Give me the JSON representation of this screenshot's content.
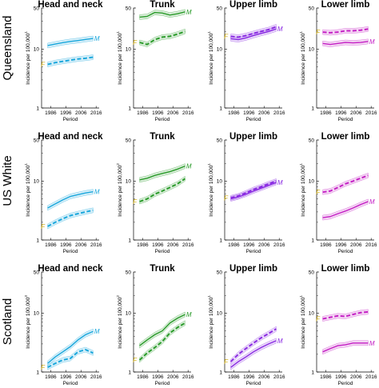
{
  "colors": {
    "head_and_neck": "#1aa7dc",
    "trunk": "#2a9b2a",
    "upper_limb": "#8a2be2",
    "lower_limb": "#c41fc4",
    "label_F": "#c8a400"
  },
  "chart_data": [
    {
      "type": "line",
      "row_label": "Queensland",
      "title": "Head and neck",
      "xlabel": "Period",
      "ylabel": "Incidence per 100,000",
      "ylabel_superscript": "1",
      "yscale": "log",
      "ylim": [
        1,
        50
      ],
      "yticks": [
        "1",
        "10",
        "50"
      ],
      "xticks": [
        "1986",
        "1996",
        "2006",
        "2016"
      ],
      "x": [
        1984,
        1989,
        1994,
        1999,
        2004,
        2009,
        2014
      ],
      "series": [
        {
          "name": "M",
          "dashed": false,
          "values": [
            11.5,
            12.2,
            12.9,
            13.5,
            14.0,
            14.6,
            15.2
          ]
        },
        {
          "name": "F",
          "dashed": true,
          "values": [
            5.5,
            5.9,
            6.2,
            6.5,
            6.8,
            7.0,
            7.3
          ]
        }
      ]
    },
    {
      "type": "line",
      "row_label": "Queensland",
      "title": "Trunk",
      "xlabel": "Period",
      "ylabel": "Incidence per 100,000",
      "ylabel_superscript": "1",
      "yscale": "log",
      "ylim": [
        1,
        50
      ],
      "yticks": [
        "1",
        "10",
        "50"
      ],
      "xticks": [
        "1986",
        "1996",
        "2006",
        "2016"
      ],
      "x": [
        1984,
        1989,
        1994,
        1999,
        2004,
        2009,
        2014
      ],
      "series": [
        {
          "name": "M",
          "dashed": false,
          "values": [
            35,
            36,
            42,
            41,
            38,
            40,
            43
          ]
        },
        {
          "name": "F",
          "dashed": true,
          "values": [
            13.0,
            12.0,
            14.5,
            16.0,
            16.5,
            18.0,
            20.0
          ]
        }
      ]
    },
    {
      "type": "line",
      "row_label": "Queensland",
      "title": "Upper limb",
      "xlabel": "Period",
      "ylabel": "Incidence per 100,000",
      "ylabel_superscript": "1",
      "yscale": "log",
      "ylim": [
        1,
        50
      ],
      "yticks": [
        "1",
        "10",
        "50"
      ],
      "xticks": [
        "1986",
        "1996",
        "2006",
        "2016"
      ],
      "x": [
        1984,
        1989,
        1994,
        1999,
        2004,
        2009,
        2014
      ],
      "series": [
        {
          "name": "M",
          "dashed": false,
          "values": [
            15.0,
            14.5,
            15.5,
            17.0,
            18.5,
            20.0,
            22.0
          ]
        },
        {
          "name": "F",
          "dashed": true,
          "values": [
            16.5,
            16.0,
            17.0,
            18.5,
            20.0,
            21.5,
            24.0
          ]
        }
      ]
    },
    {
      "type": "line",
      "row_label": "Queensland",
      "title": "Lower limb",
      "xlabel": "Period",
      "ylabel": "Incidence per 100,000",
      "ylabel_superscript": "1",
      "yscale": "log",
      "ylim": [
        1,
        50
      ],
      "yticks": [
        "1",
        "10",
        "50"
      ],
      "xticks": [
        "1986",
        "1996",
        "2006",
        "2016"
      ],
      "x": [
        1984,
        1989,
        1994,
        1999,
        2004,
        2009,
        2014
      ],
      "series": [
        {
          "name": "M",
          "dashed": false,
          "values": [
            12.5,
            12.0,
            12.5,
            13.0,
            12.8,
            13.0,
            13.5
          ]
        },
        {
          "name": "F",
          "dashed": true,
          "values": [
            19.5,
            19.0,
            19.5,
            20.5,
            20.5,
            21.0,
            22.0
          ]
        }
      ]
    },
    {
      "type": "line",
      "row_label": "US White",
      "title": "Head and neck",
      "xlabel": "Period",
      "ylabel": "Incidence per 100,000",
      "ylabel_superscript": "1",
      "yscale": "log",
      "ylim": [
        1,
        50
      ],
      "yticks": [
        "1",
        "10",
        "50"
      ],
      "xticks": [
        "1986",
        "1996",
        "2006",
        "2016"
      ],
      "x": [
        1984,
        1989,
        1994,
        1999,
        2004,
        2009,
        2014
      ],
      "series": [
        {
          "name": "M",
          "dashed": false,
          "values": [
            3.5,
            4.1,
            4.8,
            5.5,
            5.9,
            6.3,
            6.6
          ]
        },
        {
          "name": "F",
          "dashed": true,
          "values": [
            1.7,
            2.0,
            2.3,
            2.6,
            2.8,
            3.0,
            3.2
          ]
        }
      ]
    },
    {
      "type": "line",
      "row_label": "US White",
      "title": "Trunk",
      "xlabel": "Period",
      "ylabel": "Incidence per 100,000",
      "ylabel_superscript": "2",
      "yscale": "log",
      "ylim": [
        1,
        50
      ],
      "yticks": [
        "1",
        "10",
        "50"
      ],
      "xticks": [
        "1986",
        "1996",
        "2006",
        "2016"
      ],
      "x": [
        1984,
        1989,
        1994,
        1999,
        2004,
        2009,
        2014
      ],
      "series": [
        {
          "name": "M",
          "dashed": false,
          "values": [
            10.5,
            11.2,
            12.5,
            13.5,
            14.5,
            16.0,
            18.0
          ]
        },
        {
          "name": "F",
          "dashed": true,
          "values": [
            4.5,
            5.0,
            6.0,
            6.8,
            7.8,
            9.0,
            11.0
          ]
        }
      ]
    },
    {
      "type": "line",
      "row_label": "US White",
      "title": "Upper limb",
      "xlabel": "Period",
      "ylabel": "Incidence per 100,000",
      "ylabel_superscript": "1",
      "yscale": "log",
      "ylim": [
        1,
        50
      ],
      "yticks": [
        "1",
        "10",
        "50"
      ],
      "xticks": [
        "1986",
        "1996",
        "2006",
        "2016"
      ],
      "x": [
        1984,
        1989,
        1994,
        1999,
        2004,
        2009,
        2014
      ],
      "series": [
        {
          "name": "M",
          "dashed": false,
          "values": [
            5.0,
            5.4,
            6.0,
            6.8,
            7.6,
            8.5,
            9.5
          ]
        },
        {
          "name": "F",
          "dashed": true,
          "values": [
            5.2,
            5.6,
            6.3,
            7.2,
            8.0,
            9.0,
            10.0
          ]
        }
      ]
    },
    {
      "type": "line",
      "row_label": "US White",
      "title": "Lower limb",
      "xlabel": "Period",
      "ylabel": "Incidence per 100,000",
      "ylabel_superscript": "1",
      "yscale": "log",
      "ylim": [
        1,
        50
      ],
      "yticks": [
        "1",
        "10",
        "50"
      ],
      "xticks": [
        "1986",
        "1996",
        "2006",
        "2016"
      ],
      "x": [
        1984,
        1989,
        1994,
        1999,
        2004,
        2009,
        2014
      ],
      "series": [
        {
          "name": "M",
          "dashed": false,
          "values": [
            2.4,
            2.5,
            2.8,
            3.1,
            3.5,
            4.0,
            4.5
          ]
        },
        {
          "name": "F",
          "dashed": true,
          "values": [
            6.5,
            6.8,
            7.8,
            9.0,
            10.0,
            11.2,
            12.5
          ]
        }
      ]
    },
    {
      "type": "line",
      "row_label": "Scotland",
      "title": "Head and neck",
      "xlabel": "Period",
      "ylabel": "Incidence per 100,000",
      "ylabel_superscript": "3",
      "yscale": "log",
      "ylim": [
        1,
        50
      ],
      "yticks": [
        "1",
        "10",
        "50"
      ],
      "xticks": [
        "1986",
        "1996",
        "2006",
        "2016"
      ],
      "x": [
        1984,
        1989,
        1994,
        1999,
        2004,
        2009,
        2014
      ],
      "series": [
        {
          "name": "M",
          "dashed": false,
          "values": [
            1.4,
            1.8,
            2.2,
            2.7,
            3.5,
            4.3,
            4.9
          ]
        },
        {
          "name": "F",
          "dashed": true,
          "values": [
            1.2,
            1.4,
            1.6,
            1.7,
            2.2,
            2.4,
            2.1
          ]
        }
      ]
    },
    {
      "type": "line",
      "row_label": "Scotland",
      "title": "Trunk",
      "xlabel": "Period",
      "ylabel": "Incidence per 100,000",
      "ylabel_superscript": "2",
      "yscale": "log",
      "ylim": [
        1,
        50
      ],
      "yticks": [
        "1",
        "10",
        "50"
      ],
      "xticks": [
        "1986",
        "1996",
        "2006",
        "2016"
      ],
      "x": [
        1984,
        1989,
        1994,
        1999,
        2004,
        2009,
        2014
      ],
      "series": [
        {
          "name": "M",
          "dashed": false,
          "values": [
            2.8,
            3.5,
            4.3,
            5.0,
            6.8,
            8.2,
            9.5
          ]
        },
        {
          "name": "F",
          "dashed": true,
          "values": [
            1.6,
            2.1,
            2.6,
            3.3,
            4.6,
            5.7,
            6.8
          ]
        }
      ]
    },
    {
      "type": "line",
      "row_label": "Scotland",
      "title": "Upper limb",
      "xlabel": "Period",
      "ylabel": "Incidence per 100,000",
      "ylabel_superscript": "1",
      "yscale": "log",
      "ylim": [
        1,
        50
      ],
      "yticks": [
        "1",
        "10",
        "50"
      ],
      "xticks": [
        "1986",
        "1996",
        "2006",
        "2016"
      ],
      "x": [
        1984,
        1989,
        1994,
        1999,
        2004,
        2009,
        2014
      ],
      "series": [
        {
          "name": "M",
          "dashed": false,
          "values": [
            1.2,
            1.5,
            1.8,
            2.2,
            2.6,
            3.0,
            3.4
          ]
        },
        {
          "name": "F",
          "dashed": true,
          "values": [
            1.5,
            2.0,
            2.5,
            3.1,
            3.8,
            4.5,
            5.4
          ]
        }
      ]
    },
    {
      "type": "line",
      "row_label": "Scotland",
      "title": "Lower limb",
      "xlabel": "Period",
      "ylabel": "Incidence per 100,000",
      "ylabel_superscript": "1",
      "yscale": "log",
      "ylim": [
        1,
        50
      ],
      "yticks": [
        "1",
        "10",
        "50"
      ],
      "xticks": [
        "1986",
        "1996",
        "2006",
        "2016"
      ],
      "x": [
        1984,
        1989,
        1994,
        1999,
        2004,
        2009,
        2014
      ],
      "series": [
        {
          "name": "M",
          "dashed": false,
          "values": [
            2.2,
            2.5,
            2.8,
            2.9,
            3.1,
            3.1,
            3.1
          ]
        },
        {
          "name": "F",
          "dashed": true,
          "values": [
            8.0,
            8.5,
            9.0,
            8.8,
            9.5,
            10.2,
            10.5
          ]
        }
      ]
    }
  ]
}
